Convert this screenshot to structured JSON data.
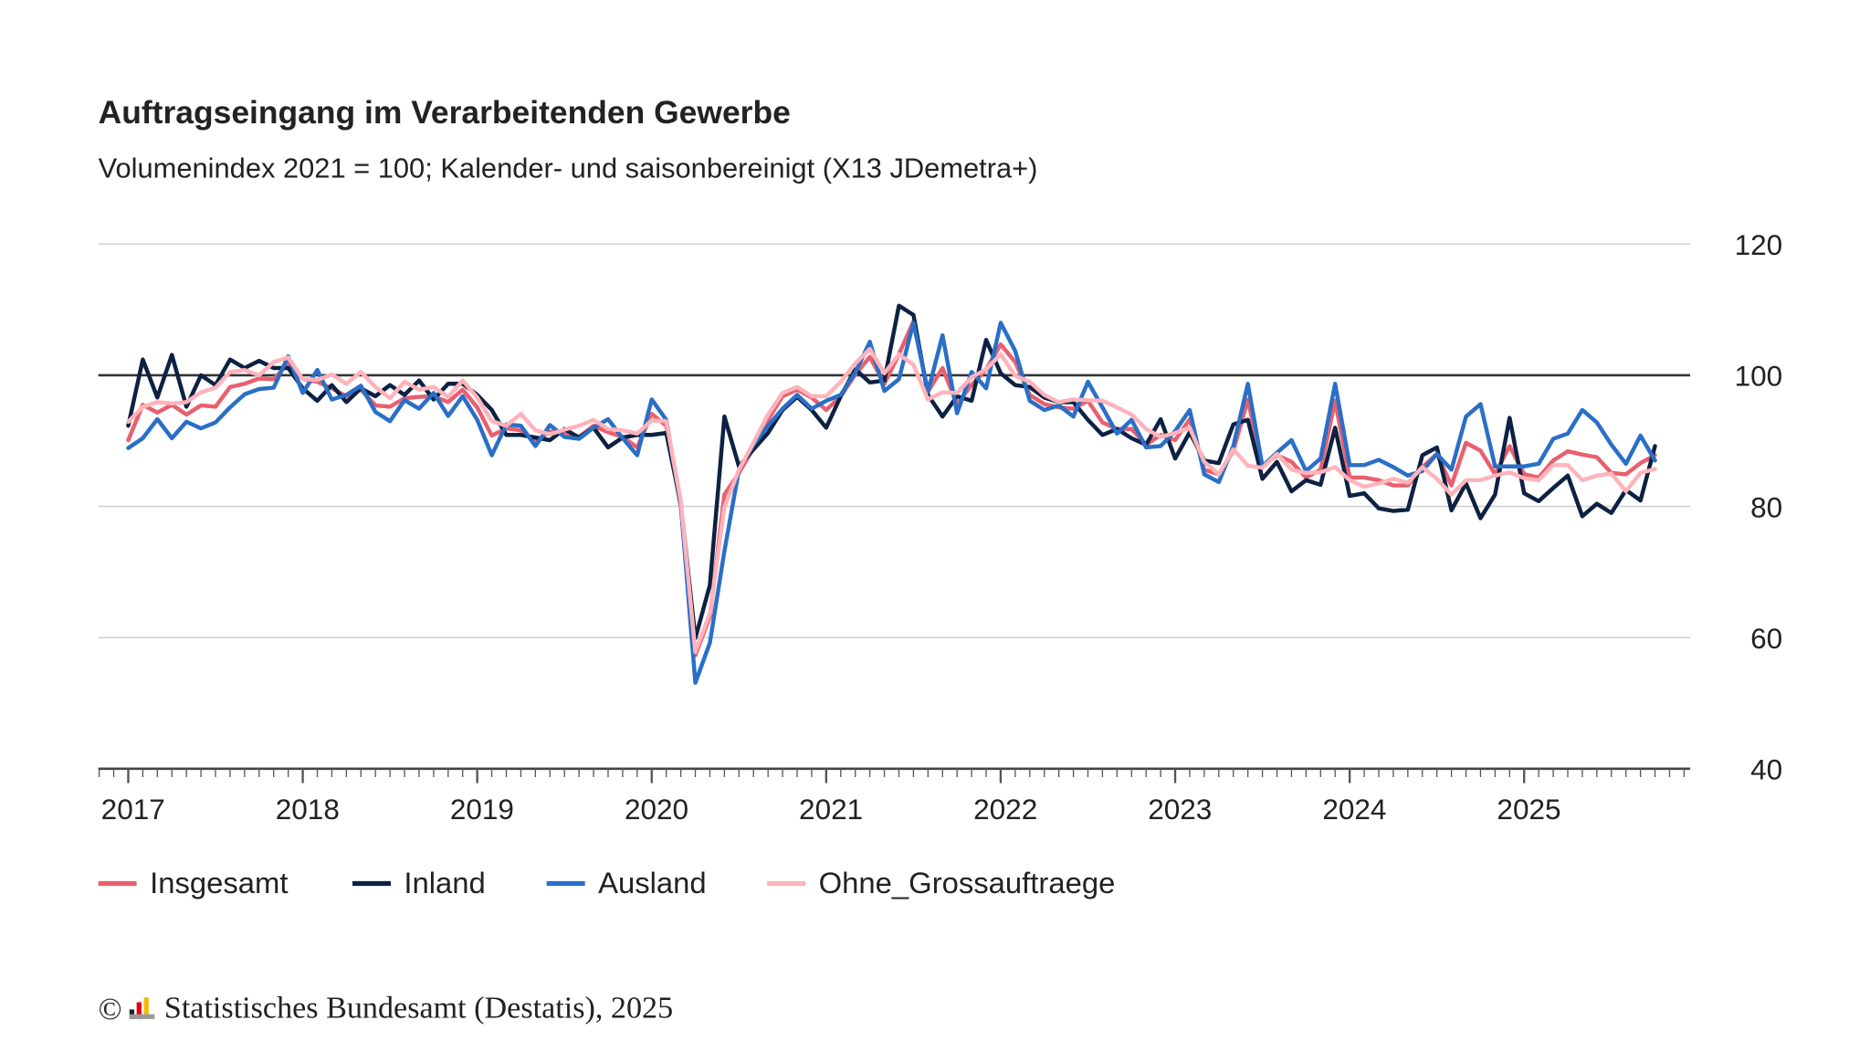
{
  "chart_data": {
    "type": "line",
    "title": "Auftragseingang im Verarbeitenden Gewerbe",
    "subtitle": "Volumenindex 2021 = 100; Kalender- und saisonbereinigt (X13 JDemetra+)",
    "x_frequency": "monthly",
    "x_start": "2017-01",
    "x_end": "2025-10",
    "x_tick_labels": [
      "2017",
      "2018",
      "2019",
      "2020",
      "2021",
      "2022",
      "2023",
      "2024",
      "2025"
    ],
    "ylim": [
      40,
      120
    ],
    "y_ticks": [
      40,
      60,
      80,
      100,
      120
    ],
    "y_tick_labels": [
      "40",
      "60",
      "80",
      "100",
      "120"
    ],
    "y_axis_side": "right",
    "reference_line": 100,
    "grid": "horizontal",
    "legend_placement": "bottom-left",
    "series": [
      {
        "name": "Insgesamt",
        "color": "#e8606f",
        "values": [
          90.1,
          95.5,
          94.3,
          95.5,
          94,
          95.4,
          95.2,
          98.2,
          98.7,
          99.5,
          99.4,
          101.8,
          99.4,
          99,
          98,
          96.8,
          97.8,
          95.4,
          95.2,
          96.5,
          96.7,
          96.8,
          95.9,
          97.8,
          95.1,
          90.8,
          91.9,
          91.6,
          89.9,
          91.4,
          91.3,
          90.6,
          92.3,
          91.3,
          90.6,
          89,
          94.1,
          92.3,
          79.9,
          57.3,
          63.2,
          81.8,
          85.1,
          88.9,
          93.2,
          96.8,
          97.8,
          96.6,
          94.7,
          96.8,
          100.1,
          102.8,
          98.7,
          103.2,
          108.2,
          97.5,
          101.1,
          95.6,
          98.5,
          100.9,
          104.7,
          102,
          97,
          95.6,
          95.1,
          94.9,
          96.1,
          92.8,
          91.8,
          91.8,
          89.4,
          90.9,
          90.1,
          93.3,
          85.6,
          84.9,
          88.5,
          96.3,
          86.1,
          87.8,
          86.8,
          84.4,
          85.6,
          96.1,
          84.4,
          84.4,
          84,
          83.2,
          83.2,
          86,
          88,
          83.2,
          89.7,
          88.5,
          84.9,
          89.2,
          84.9,
          84.4,
          87,
          88.4,
          87.9,
          87.5,
          85.1,
          84.9,
          86.6,
          87.8
        ]
      },
      {
        "name": "Inland",
        "color": "#0d2142",
        "values": [
          92.3,
          102.4,
          96.6,
          103.1,
          95.2,
          100,
          98.5,
          102.4,
          101.1,
          102.2,
          101.1,
          101.1,
          98,
          96.1,
          98.5,
          95.9,
          98,
          96.8,
          98.5,
          97,
          99.2,
          96.3,
          98.7,
          98.7,
          97,
          94.7,
          90.9,
          90.9,
          90.5,
          90.1,
          91.8,
          90.5,
          92,
          89,
          90.5,
          90.9,
          90.9,
          91.2,
          80.4,
          59.9,
          68,
          93.7,
          86.1,
          88.7,
          91.2,
          94.7,
          96.7,
          94.7,
          92,
          96.8,
          100.9,
          98.9,
          99.2,
          110.6,
          109.2,
          97,
          93.7,
          96.8,
          96.1,
          105.4,
          100.3,
          98.5,
          98.2,
          96.6,
          95.9,
          95.9,
          93.2,
          90.9,
          91.8,
          90.4,
          89.4,
          93.3,
          87.3,
          91.3,
          87,
          86.6,
          92.5,
          93.2,
          84.2,
          86.8,
          82.3,
          84,
          83.3,
          92,
          81.6,
          82,
          79.7,
          79.3,
          79.5,
          87.8,
          89,
          79.4,
          83.5,
          78.2,
          81.8,
          93.5,
          82,
          80.8,
          82.8,
          84.7,
          78.5,
          80.4,
          79,
          82.5,
          80.9,
          89.2
        ]
      },
      {
        "name": "Ausland",
        "color": "#2a6fc7",
        "values": [
          88.9,
          90.4,
          93.3,
          90.4,
          92.9,
          91.9,
          92.8,
          95.1,
          97.1,
          97.9,
          98.1,
          102.9,
          97.3,
          100.8,
          96.3,
          97,
          98.4,
          94.4,
          93,
          96.2,
          94.9,
          97.3,
          93.8,
          96.8,
          93.2,
          87.8,
          92.5,
          92.3,
          89.2,
          92.4,
          90.6,
          90.3,
          92,
          93.3,
          90.4,
          87.8,
          96.3,
          93.2,
          80.4,
          53.1,
          59.2,
          73.2,
          85.6,
          89.4,
          92.3,
          94.9,
          97,
          94.9,
          96.1,
          97,
          100.4,
          105.1,
          97.6,
          99.4,
          108,
          97.5,
          106.1,
          94.2,
          100.5,
          98,
          108,
          103.7,
          96.1,
          94.7,
          95.4,
          93.7,
          99,
          95.1,
          91.1,
          93.2,
          89,
          89.2,
          91.5,
          94.7,
          84.9,
          83.7,
          89.2,
          98.7,
          86.1,
          88.2,
          90.1,
          85.4,
          87.3,
          98.7,
          86.3,
          86.3,
          87.1,
          86,
          84.7,
          85.4,
          88,
          85.6,
          93.7,
          95.6,
          86.1,
          86.1,
          86.1,
          86.5,
          90.3,
          91.1,
          94.7,
          92.8,
          89.4,
          86.5,
          90.8,
          87
        ]
      },
      {
        "name": "Ohne_Grossauftraege",
        "color": "#ffb3ba",
        "values": [
          92.9,
          95.2,
          95.9,
          95.7,
          95.9,
          97.4,
          98.1,
          100.5,
          100.8,
          100,
          102,
          102.7,
          99.4,
          99.3,
          100.1,
          98.7,
          100.5,
          98.2,
          96.5,
          99,
          97.8,
          98.2,
          96.7,
          99.2,
          96.6,
          93,
          92.3,
          94.1,
          91.6,
          91,
          91.7,
          92.3,
          93.2,
          91.8,
          91.6,
          91.1,
          93.1,
          93,
          80.9,
          57.8,
          63.7,
          79.9,
          85.6,
          89.7,
          94,
          97.3,
          98.2,
          96.8,
          96.8,
          99,
          101.8,
          104,
          100.3,
          103.2,
          101.6,
          96.3,
          97.4,
          97.3,
          99.7,
          100.9,
          103.2,
          99.9,
          99,
          97,
          95.9,
          96.3,
          96.2,
          96.1,
          95.1,
          94,
          91.8,
          90.6,
          91.2,
          92,
          86.8,
          84.9,
          88.7,
          86.2,
          85.9,
          88,
          85.6,
          85.1,
          85.2,
          86,
          84,
          83,
          83.5,
          84.2,
          83.6,
          86,
          84.2,
          81.8,
          84,
          84,
          84.7,
          85.2,
          84.3,
          84,
          86.3,
          86.3,
          84,
          84.7,
          85,
          82.3,
          85.1,
          85.7
        ]
      }
    ]
  },
  "footer": {
    "copyright_symbol": "©",
    "logo": "destatis-bar-logo",
    "source": "Statistisches Bundesamt (Destatis), 2025"
  },
  "colors": {
    "text": "#222222",
    "grid": "#d0d0d0",
    "reference_line": "#333333"
  }
}
